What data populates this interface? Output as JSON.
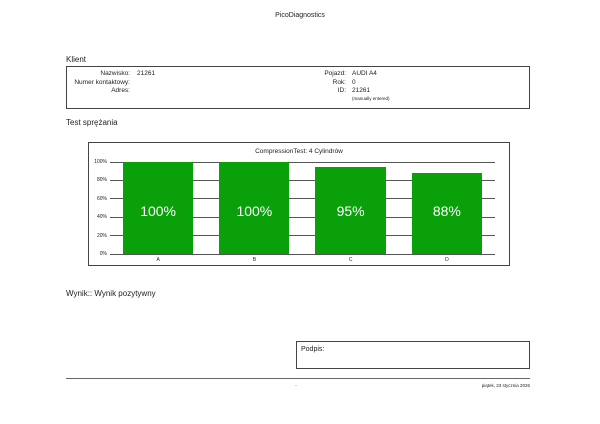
{
  "header": {
    "title": "PicoDiagnostics"
  },
  "client": {
    "section_title": "Klient",
    "nazwisko_label": "Nazwisko:",
    "nazwisko_value": "21261",
    "kontakt_label": "Numer kontaktowy:",
    "adres_label": "Adres:",
    "pojazd_label": "Pojazd:",
    "pojazd_value": "AUDI A4",
    "rok_label": "Rok:",
    "rok_value": "0",
    "id_label": "ID:",
    "id_value": "21261",
    "id_note": "(manually entered)"
  },
  "test": {
    "section_title": "Test sprężania"
  },
  "chart_data": {
    "type": "bar",
    "title": "CompressionTest: 4 Cylindrów",
    "categories": [
      "A",
      "B",
      "C",
      "D"
    ],
    "values": [
      100,
      100,
      95,
      88
    ],
    "data_labels": [
      "100%",
      "100%",
      "95%",
      "88%"
    ],
    "y_ticks": [
      "0%",
      "20%",
      "40%",
      "60%",
      "80%",
      "100%"
    ],
    "ylim": [
      0,
      100
    ],
    "grid": true,
    "color": "#0aa00a"
  },
  "result": {
    "text": "Wynik:: Wynik pozytywny"
  },
  "signature": {
    "label": "Podpis:"
  },
  "footer": {
    "page": "-",
    "date": "piątek, 23 stycznia 2026"
  }
}
